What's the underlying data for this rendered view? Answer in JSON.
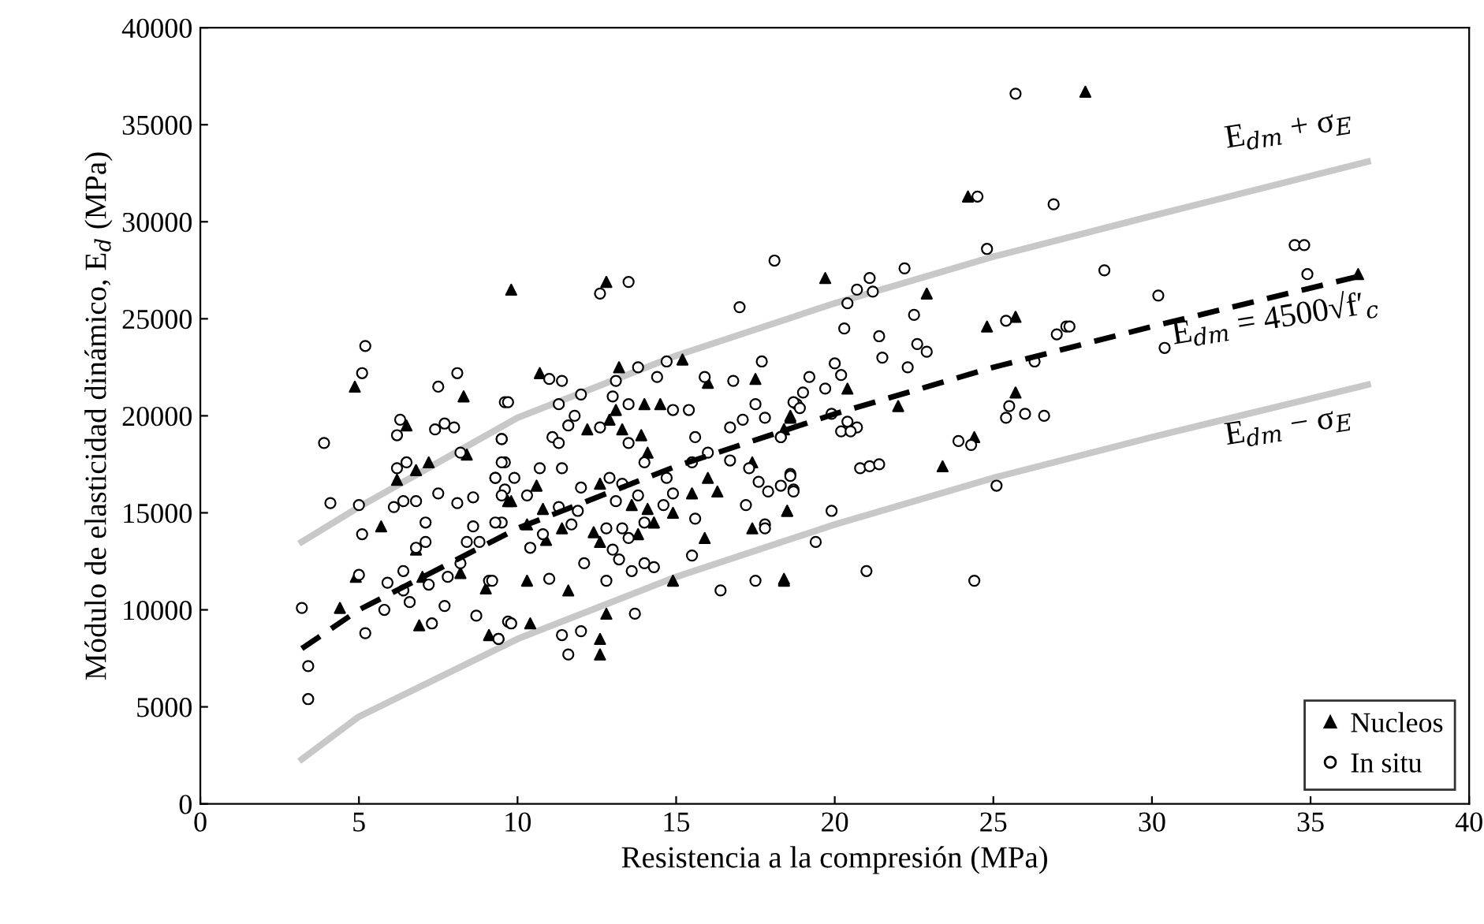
{
  "chart_data": {
    "type": "scatter",
    "xlabel": "Resistencia a la compresión (MPa)",
    "ylabel": "Módulo de elasticidad dinámico, E$_{d}$ (MPa)",
    "xlim": [
      0,
      40
    ],
    "ylim": [
      0,
      40000
    ],
    "xticks": [
      0,
      5,
      10,
      15,
      20,
      25,
      30,
      35,
      40
    ],
    "yticks": [
      0,
      5000,
      10000,
      15000,
      20000,
      25000,
      30000,
      35000,
      40000
    ],
    "grid": false,
    "legend": "bottom right",
    "series": [
      {
        "name": "Nucleos",
        "marker": "triangle",
        "color": "#000000",
        "x": [
          4.87,
          8.3,
          6.5,
          7.2,
          6.2,
          6.8,
          8.4,
          9.7,
          5.7,
          4.9,
          4.4,
          6.9,
          9.1,
          8.2,
          9.0,
          6.8,
          7.0,
          9.8,
          12.8,
          10.7,
          13.2,
          15.2,
          16.0,
          17.5,
          14.0,
          14.5,
          13.1,
          12.2,
          12.9,
          13.3,
          13.9,
          14.1,
          17.4,
          18.6,
          18.4,
          16.0,
          15.5,
          16.3,
          10.6,
          9.8,
          12.6,
          13.6,
          14.1,
          10.8,
          11.4,
          10.3,
          10.9,
          12.4,
          12.6,
          14.3,
          13.8,
          18.5,
          17.4,
          15.9,
          14.9,
          10.3,
          11.6,
          14.9,
          18.4,
          12.8,
          10.4,
          12.6,
          12.6,
          24.2,
          19.7,
          22.9,
          24.8,
          25.7,
          20.4,
          22.0,
          25.7,
          18.6,
          24.4,
          23.4,
          18.5,
          18.4,
          27.9,
          36.5
        ],
        "values": [
          21500,
          21000,
          19500,
          17600,
          16700,
          17200,
          18000,
          15600,
          14300,
          11700,
          10100,
          9200,
          8700,
          11900,
          11100,
          13100,
          11700,
          26500,
          26900,
          22200,
          22500,
          22900,
          21700,
          21900,
          20600,
          20600,
          20300,
          19300,
          19800,
          19300,
          19000,
          18100,
          17600,
          20000,
          19300,
          16800,
          16000,
          16100,
          16400,
          15600,
          16500,
          15400,
          15200,
          15200,
          14200,
          14400,
          13600,
          14000,
          13500,
          14500,
          13900,
          15100,
          14200,
          13700,
          15000,
          11500,
          11000,
          11500,
          11500,
          9800,
          9300,
          8500,
          7700,
          31300,
          27100,
          26300,
          24600,
          25100,
          21400,
          20500,
          21200,
          19900,
          18900,
          17400,
          15100,
          11600,
          36700,
          27300
        ]
      },
      {
        "name": "In situ",
        "marker": "circle",
        "color": "#000000",
        "x": [
          5.1,
          8.1,
          7.5,
          9.6,
          6.3,
          6.2,
          7.4,
          7.7,
          8.0,
          3.9,
          9.5,
          8.2,
          9.6,
          6.2,
          6.5,
          9.3,
          9.6,
          7.5,
          8.6,
          4.1,
          5.0,
          6.1,
          6.4,
          6.8,
          8.1,
          5.1,
          7.1,
          8.6,
          9.5,
          7.1,
          8.8,
          8.4,
          6.8,
          5.0,
          5.9,
          6.4,
          7.2,
          7.8,
          9.1,
          6.4,
          6.6,
          5.8,
          7.7,
          3.2,
          8.7,
          9.7,
          5.2,
          7.3,
          9.4,
          3.4,
          3.4,
          8.2,
          5.2,
          18.1,
          13.5,
          12.6,
          17.0,
          17.7,
          14.7,
          13.8,
          14.4,
          15.9,
          16.8,
          11.0,
          11.4,
          13.1,
          12.0,
          13.0,
          9.7,
          11.3,
          13.5,
          14.9,
          15.4,
          17.5,
          11.8,
          11.6,
          12.6,
          16.7,
          17.1,
          17.8,
          18.8,
          11.1,
          11.3,
          13.5,
          15.6,
          16.0,
          15.5,
          16.7,
          17.3,
          18.3,
          9.5,
          9.5,
          10.7,
          11.4,
          14.0,
          9.9,
          12.0,
          12.9,
          13.3,
          14.7,
          9.3,
          9.5,
          10.3,
          13.8,
          14.9,
          17.6,
          17.9,
          18.7,
          18.6,
          11.3,
          11.9,
          13.1,
          14.6,
          17.2,
          9.3,
          11.7,
          10.8,
          12.8,
          13.3,
          14.0,
          15.6,
          17.8,
          17.8,
          10.4,
          13.5,
          13.0,
          13.2,
          12.1,
          13.6,
          14.0,
          14.3,
          15.5,
          9.2,
          11.0,
          12.8,
          16.4,
          17.5,
          9.8,
          13.7,
          9.4,
          11.4,
          12.0,
          11.6,
          24.5,
          26.9,
          24.8,
          28.5,
          22.2,
          21.1,
          20.7,
          21.2,
          20.4,
          22.5,
          20.3,
          21.4,
          22.6,
          22.9,
          21.5,
          22.3,
          25.4,
          27.0,
          27.3,
          27.4,
          26.3,
          20.0,
          20.2,
          19.2,
          19.7,
          19.0,
          18.7,
          18.9,
          19.9,
          20.4,
          20.7,
          20.2,
          20.5,
          18.3,
          25.5,
          25.4,
          26.0,
          26.6,
          23.9,
          24.3,
          20.8,
          21.1,
          21.4,
          18.6,
          18.3,
          18.7,
          19.9,
          25.1,
          19.4,
          21.0,
          24.4,
          25.7,
          30.2,
          30.4,
          34.5,
          34.8,
          34.9
        ],
        "values": [
          22200,
          22200,
          21500,
          20700,
          19800,
          19000,
          19300,
          19600,
          19400,
          18600,
          18800,
          18100,
          17600,
          17300,
          17600,
          16800,
          16200,
          16000,
          15800,
          15500,
          15400,
          15300,
          15600,
          15600,
          15500,
          13900,
          14500,
          14300,
          14500,
          13500,
          13500,
          13500,
          13200,
          11800,
          11400,
          12000,
          11300,
          11700,
          11500,
          11000,
          10400,
          10000,
          10200,
          10100,
          9700,
          9400,
          8800,
          9300,
          8500,
          7100,
          5400,
          12400,
          23600,
          28000,
          26900,
          26300,
          25600,
          22800,
          22800,
          22500,
          22000,
          22000,
          21800,
          21900,
          21800,
          21800,
          21100,
          21000,
          20700,
          20600,
          20600,
          20300,
          20300,
          20600,
          20000,
          19500,
          19400,
          19400,
          19800,
          19900,
          20600,
          18900,
          18600,
          18600,
          18900,
          18100,
          17600,
          17700,
          17300,
          18900,
          18800,
          17600,
          17300,
          17300,
          17600,
          16800,
          16300,
          16800,
          16500,
          16800,
          16800,
          15900,
          15900,
          15900,
          16000,
          16600,
          16100,
          16200,
          17000,
          15300,
          15100,
          15600,
          15400,
          15400,
          14500,
          14400,
          13900,
          14200,
          14200,
          14500,
          14700,
          14400,
          14200,
          13200,
          13700,
          13100,
          12600,
          12400,
          12000,
          12400,
          12200,
          12800,
          11500,
          11600,
          11500,
          11000,
          11500,
          9300,
          9800,
          8500,
          8700,
          8900,
          7700,
          31300,
          30900,
          28600,
          27500,
          27600,
          27100,
          26500,
          26400,
          25800,
          25200,
          24500,
          24100,
          23700,
          23300,
          23000,
          22500,
          24900,
          24200,
          24600,
          24600,
          22800,
          22700,
          22100,
          22000,
          21400,
          21200,
          20700,
          20400,
          20100,
          19700,
          19400,
          19200,
          19200,
          18900,
          20500,
          19900,
          20100,
          20000,
          18700,
          18500,
          17300,
          17400,
          17500,
          16900,
          16400,
          16100,
          15100,
          16400,
          13500,
          12000,
          11500,
          36600,
          26200,
          23500,
          28800,
          28800,
          27300
        ]
      },
      {
        "type": "line",
        "line_style": "solid",
        "color": "#c8c8c8",
        "x": [
          3.2,
          5,
          10,
          15,
          20,
          25,
          30,
          36.8
        ],
        "values": [
          13500,
          15300,
          19900,
          23100,
          25800,
          28200,
          30300,
          33100
        ]
      },
      {
        "type": "line",
        "line_style": "dashed",
        "color": "#000000",
        "x": [
          3.2,
          5,
          10,
          15,
          20,
          25,
          30,
          36.8
        ],
        "values": [
          8000,
          10000,
          14200,
          17400,
          20100,
          22500,
          24600,
          27300
        ]
      },
      {
        "type": "line",
        "line_style": "solid",
        "color": "#c8c8c8",
        "x": [
          3.2,
          5,
          10,
          15,
          20,
          25,
          30,
          36.8
        ],
        "values": [
          2300,
          4500,
          8500,
          11700,
          14400,
          16800,
          18900,
          21600
        ]
      }
    ],
    "annotations": [
      "E$_{dm}$ + σ$_{E}$",
      "E$_{dm}$ = 4500√f′$_{c}$",
      "E$_{dm}$ − σ$_{E}$"
    ]
  }
}
